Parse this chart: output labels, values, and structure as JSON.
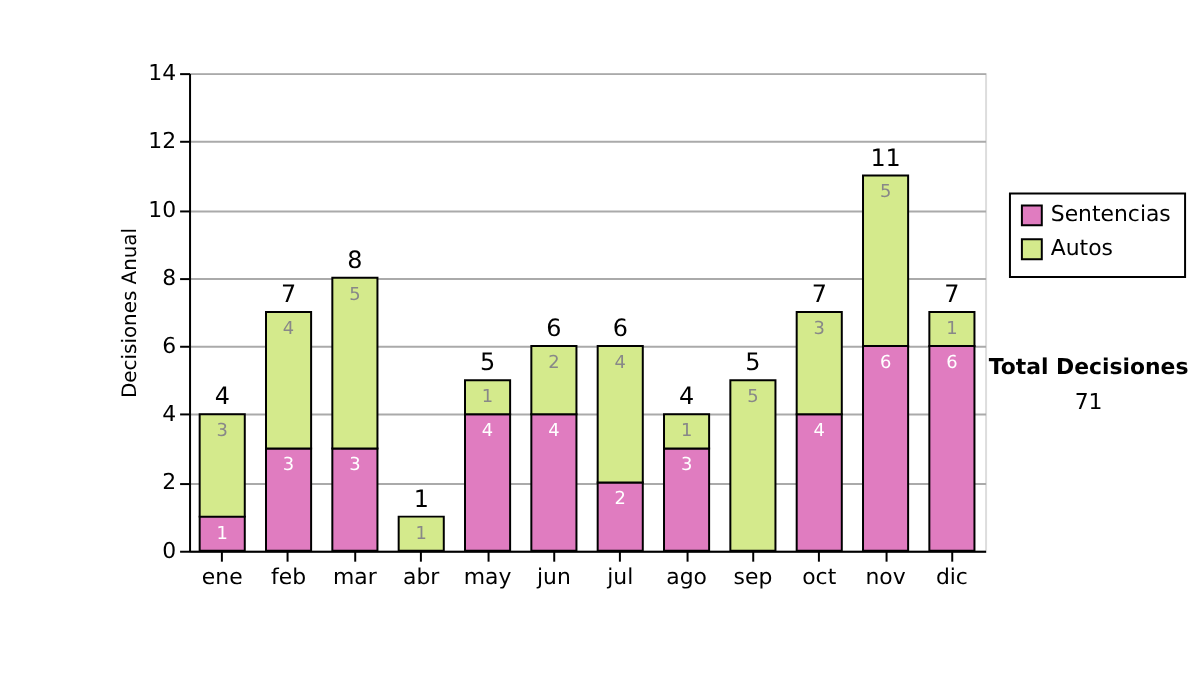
{
  "chart_data": {
    "type": "bar",
    "stacked": true,
    "ylabel": "Decisiones Anual",
    "categories": [
      "ene",
      "feb",
      "mar",
      "abr",
      "may",
      "jun",
      "jul",
      "ago",
      "sep",
      "oct",
      "nov",
      "dic"
    ],
    "series": [
      {
        "name": "Sentencias",
        "color": "#e07cc0",
        "values": [
          1,
          3,
          3,
          0,
          4,
          4,
          2,
          3,
          0,
          4,
          6,
          6
        ],
        "value_labels": [
          "1",
          "3",
          "3",
          null,
          "4",
          "4",
          "2",
          "3",
          null,
          "4",
          "6",
          "6"
        ]
      },
      {
        "name": "Autos",
        "color": "#d4ea8c",
        "values": [
          3,
          4,
          5,
          1,
          1,
          2,
          4,
          1,
          5,
          3,
          5,
          1
        ],
        "value_labels": [
          "3",
          "4",
          "5",
          "1",
          "1",
          "2",
          "4",
          "1",
          "5",
          "3",
          "5",
          "1"
        ]
      }
    ],
    "totals": [
      "4",
      "7",
      "8",
      "1",
      "5",
      "6",
      "6",
      "4",
      "5",
      "7",
      "11",
      "7"
    ],
    "ylim": [
      0,
      14
    ],
    "yticks": [
      0,
      2,
      4,
      6,
      8,
      10,
      12,
      14
    ],
    "grid": "y",
    "legend": "right",
    "annotations": [
      "Total Decisiones",
      "71"
    ]
  }
}
